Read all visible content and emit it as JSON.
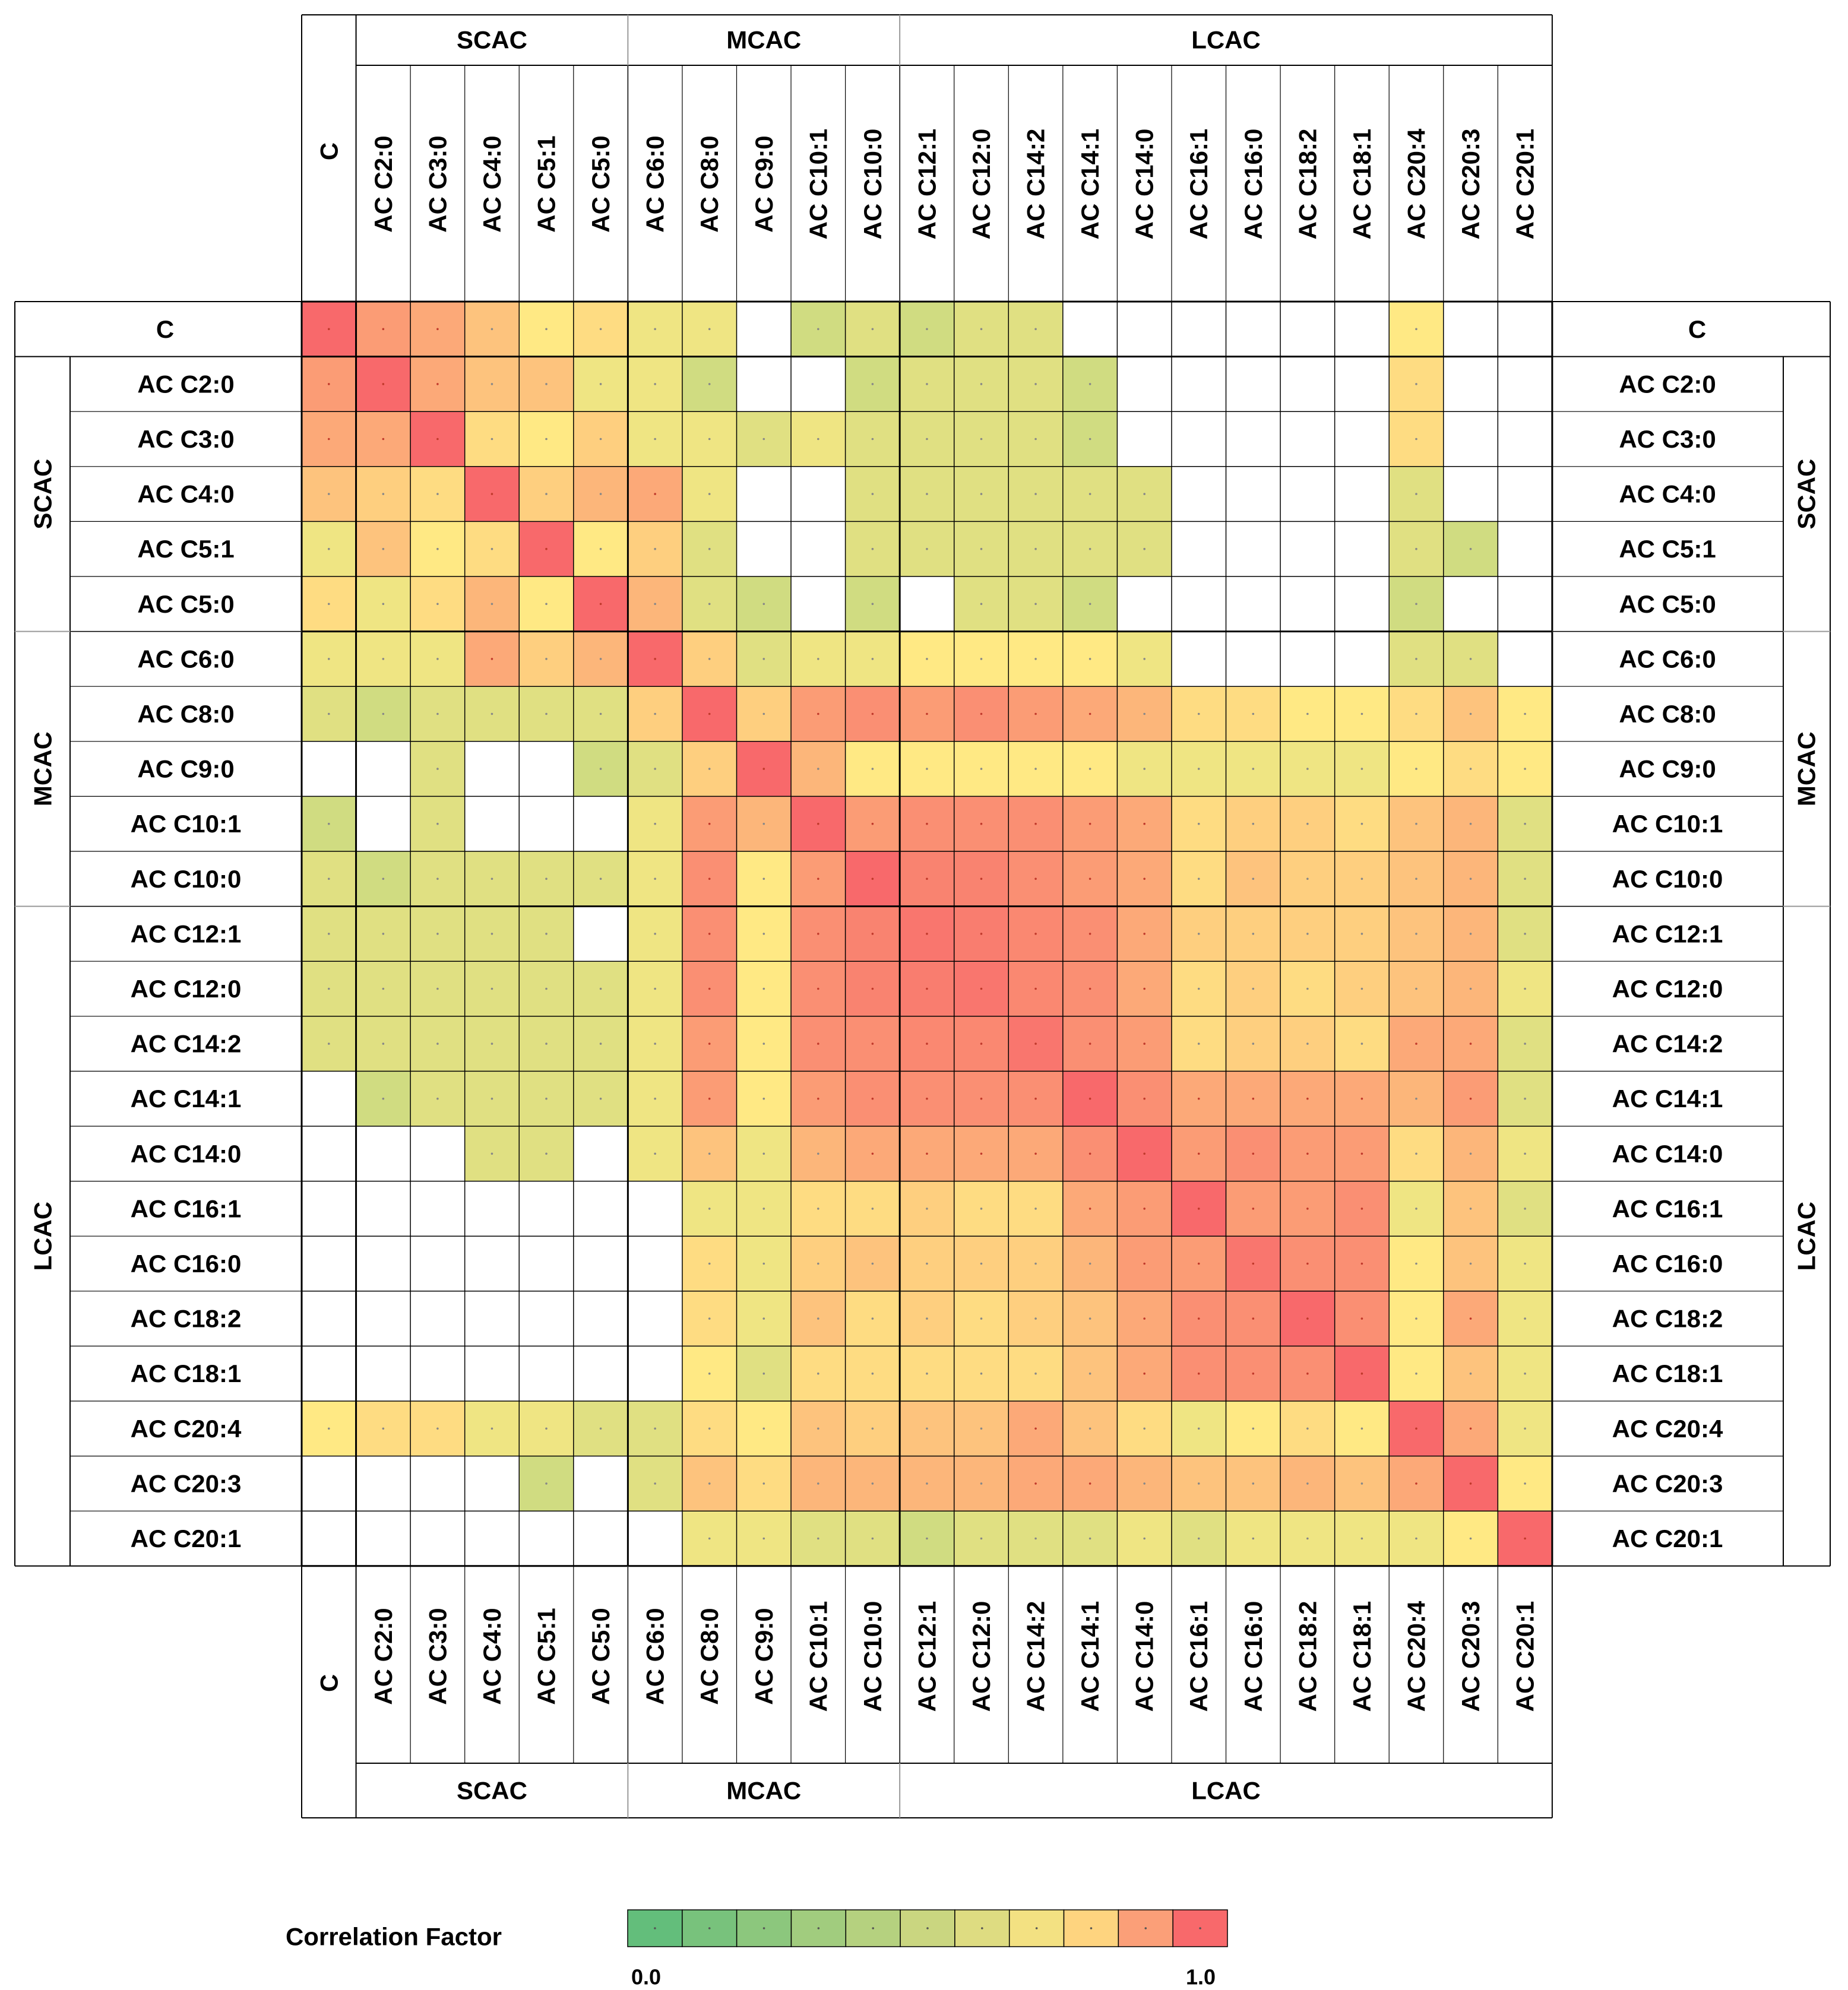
{
  "chart_data": {
    "type": "heatmap",
    "title": "",
    "variables": [
      "C",
      "AC C2:0",
      "AC C3:0",
      "AC C4:0",
      "AC C5:1",
      "AC C5:0",
      "AC C6:0",
      "AC C8:0",
      "AC C9:0",
      "AC C10:1",
      "AC C10:0",
      "AC C12:1",
      "AC C12:0",
      "AC C14:2",
      "AC C14:1",
      "AC C14:0",
      "AC C16:1",
      "AC C16:0",
      "AC C18:2",
      "AC C18:1",
      "AC C20:4",
      "AC C20:3",
      "AC C20:1"
    ],
    "groups": [
      {
        "name": "C",
        "variables": [
          "C"
        ]
      },
      {
        "name": "SCAC",
        "variables": [
          "AC C2:0",
          "AC C3:0",
          "AC C4:0",
          "AC C5:1",
          "AC C5:0"
        ]
      },
      {
        "name": "MCAC",
        "variables": [
          "AC C6:0",
          "AC C8:0",
          "AC C9:0",
          "AC C10:1",
          "AC C10:0"
        ]
      },
      {
        "name": "LCAC",
        "variables": [
          "AC C12:1",
          "AC C12:0",
          "AC C14:2",
          "AC C14:1",
          "AC C14:0",
          "AC C16:1",
          "AC C16:0",
          "AC C18:2",
          "AC C18:1",
          "AC C20:4",
          "AC C20:3",
          "AC C20:1"
        ]
      }
    ],
    "matrix": [
      [
        1.0,
        0.8,
        0.75,
        0.65,
        0.5,
        0.55,
        0.45,
        0.45,
        null,
        0.35,
        0.4,
        0.35,
        0.4,
        0.4,
        null,
        null,
        null,
        null,
        null,
        null,
        0.5,
        null,
        null
      ],
      [
        0.8,
        1.0,
        0.75,
        0.65,
        0.65,
        0.45,
        0.45,
        0.35,
        null,
        null,
        0.35,
        0.4,
        0.4,
        0.4,
        0.35,
        null,
        null,
        null,
        null,
        null,
        0.55,
        null,
        null
      ],
      [
        0.75,
        0.75,
        1.0,
        0.55,
        0.5,
        0.6,
        0.45,
        0.45,
        0.4,
        0.45,
        0.4,
        0.4,
        0.4,
        0.4,
        0.35,
        null,
        null,
        null,
        null,
        null,
        0.55,
        null,
        null
      ],
      [
        0.65,
        0.6,
        0.55,
        1.0,
        0.6,
        0.7,
        0.75,
        0.45,
        null,
        null,
        0.4,
        0.4,
        0.4,
        0.4,
        0.4,
        0.4,
        null,
        null,
        null,
        null,
        0.4,
        null,
        null
      ],
      [
        0.45,
        0.65,
        0.5,
        0.55,
        1.0,
        0.5,
        0.6,
        0.4,
        null,
        null,
        0.4,
        0.4,
        0.4,
        0.4,
        0.4,
        0.4,
        null,
        null,
        null,
        null,
        0.4,
        0.35,
        null
      ],
      [
        0.55,
        0.45,
        0.55,
        0.7,
        0.5,
        1.0,
        0.7,
        0.4,
        0.35,
        null,
        0.35,
        null,
        0.4,
        0.4,
        0.35,
        null,
        null,
        null,
        null,
        null,
        0.35,
        null,
        null
      ],
      [
        0.45,
        0.45,
        0.45,
        0.75,
        0.6,
        0.7,
        1.0,
        0.6,
        0.4,
        0.45,
        0.45,
        0.5,
        0.5,
        0.5,
        0.5,
        0.45,
        null,
        null,
        null,
        null,
        0.4,
        0.4,
        null
      ],
      [
        0.4,
        0.35,
        0.4,
        0.4,
        0.4,
        0.4,
        0.6,
        1.0,
        0.6,
        0.8,
        0.85,
        0.8,
        0.85,
        0.8,
        0.75,
        0.7,
        0.55,
        0.55,
        0.5,
        0.5,
        0.55,
        0.65,
        0.5
      ],
      [
        null,
        null,
        0.4,
        null,
        null,
        0.35,
        0.4,
        0.6,
        1.0,
        0.7,
        0.5,
        0.5,
        0.5,
        0.5,
        0.5,
        0.45,
        0.45,
        0.45,
        0.45,
        0.45,
        0.5,
        0.55,
        0.5
      ],
      [
        0.35,
        null,
        0.4,
        null,
        null,
        null,
        0.45,
        0.8,
        0.7,
        1.0,
        0.8,
        0.85,
        0.85,
        0.85,
        0.8,
        0.75,
        0.55,
        0.6,
        0.6,
        0.55,
        0.65,
        0.7,
        0.4
      ],
      [
        0.4,
        0.35,
        0.4,
        0.4,
        0.4,
        0.4,
        0.45,
        0.85,
        0.5,
        0.8,
        1.0,
        0.9,
        0.9,
        0.85,
        0.8,
        0.75,
        0.55,
        0.65,
        0.6,
        0.6,
        0.65,
        0.7,
        0.4
      ],
      [
        0.4,
        0.4,
        0.4,
        0.4,
        0.4,
        null,
        0.45,
        0.85,
        0.5,
        0.85,
        0.9,
        0.95,
        0.92,
        0.88,
        0.85,
        0.75,
        0.6,
        0.6,
        0.6,
        0.6,
        0.65,
        0.7,
        0.4
      ],
      [
        0.4,
        0.4,
        0.4,
        0.4,
        0.4,
        0.4,
        0.45,
        0.85,
        0.5,
        0.85,
        0.9,
        0.92,
        0.95,
        0.88,
        0.85,
        0.75,
        0.55,
        0.6,
        0.55,
        0.6,
        0.65,
        0.7,
        0.45
      ],
      [
        0.4,
        0.4,
        0.4,
        0.4,
        0.4,
        0.4,
        0.45,
        0.8,
        0.5,
        0.85,
        0.85,
        0.88,
        0.88,
        0.95,
        0.85,
        0.8,
        0.55,
        0.6,
        0.6,
        0.55,
        0.75,
        0.75,
        0.4
      ],
      [
        null,
        0.35,
        0.4,
        0.4,
        0.4,
        0.4,
        0.45,
        0.8,
        0.5,
        0.8,
        0.85,
        0.85,
        0.85,
        0.85,
        1.0,
        0.85,
        0.75,
        0.75,
        0.75,
        0.75,
        0.7,
        0.8,
        0.4
      ],
      [
        null,
        null,
        null,
        0.4,
        0.4,
        null,
        0.45,
        0.65,
        0.45,
        0.7,
        0.75,
        0.75,
        0.75,
        0.75,
        0.85,
        1.0,
        0.8,
        0.85,
        0.8,
        0.8,
        0.55,
        0.7,
        0.45
      ],
      [
        null,
        null,
        null,
        null,
        null,
        null,
        null,
        0.45,
        0.45,
        0.55,
        0.55,
        0.6,
        0.55,
        0.55,
        0.75,
        0.8,
        1.0,
        0.8,
        0.8,
        0.85,
        0.45,
        0.65,
        0.4
      ],
      [
        null,
        null,
        null,
        null,
        null,
        null,
        null,
        0.55,
        0.45,
        0.6,
        0.65,
        0.6,
        0.6,
        0.6,
        0.7,
        0.8,
        0.8,
        0.95,
        0.85,
        0.85,
        0.5,
        0.65,
        0.45
      ],
      [
        null,
        null,
        null,
        null,
        null,
        null,
        null,
        0.55,
        0.45,
        0.65,
        0.55,
        0.6,
        0.55,
        0.6,
        0.65,
        0.75,
        0.85,
        0.85,
        1.0,
        0.85,
        0.5,
        0.75,
        0.45
      ],
      [
        null,
        null,
        null,
        null,
        null,
        null,
        null,
        0.5,
        0.4,
        0.55,
        0.55,
        0.55,
        0.55,
        0.55,
        0.65,
        0.75,
        0.85,
        0.85,
        0.85,
        1.0,
        0.5,
        0.65,
        0.45
      ],
      [
        0.5,
        0.55,
        0.55,
        0.45,
        0.45,
        0.4,
        0.4,
        0.55,
        0.5,
        0.65,
        0.6,
        0.65,
        0.65,
        0.75,
        0.65,
        0.55,
        0.45,
        0.5,
        0.55,
        0.5,
        1.0,
        0.75,
        0.45
      ],
      [
        null,
        null,
        null,
        null,
        0.35,
        null,
        0.4,
        0.65,
        0.55,
        0.7,
        0.7,
        0.7,
        0.7,
        0.75,
        0.75,
        0.7,
        0.65,
        0.65,
        0.7,
        0.65,
        0.75,
        1.0,
        0.5
      ],
      [
        null,
        null,
        null,
        null,
        null,
        null,
        null,
        0.45,
        0.45,
        0.4,
        0.4,
        0.35,
        0.4,
        0.4,
        0.4,
        0.45,
        0.4,
        0.45,
        0.45,
        0.45,
        0.45,
        0.5,
        1.0
      ]
    ],
    "legend": {
      "title": "Correlation Factor",
      "min_label": "0.0",
      "max_label": "1.0",
      "colors": [
        "#63be7b",
        "#78c27c",
        "#8cc77d",
        "#a1cc7e",
        "#b5d17f",
        "#cad680",
        "#dedc81",
        "#f3e182",
        "#fed47f",
        "#fb9f78",
        "#f8696b"
      ]
    },
    "color_scale": {
      "min": 0.0,
      "max": 1.0,
      "low": "#63be7b",
      "mid": "#ffe984",
      "high": "#f8696b"
    }
  }
}
